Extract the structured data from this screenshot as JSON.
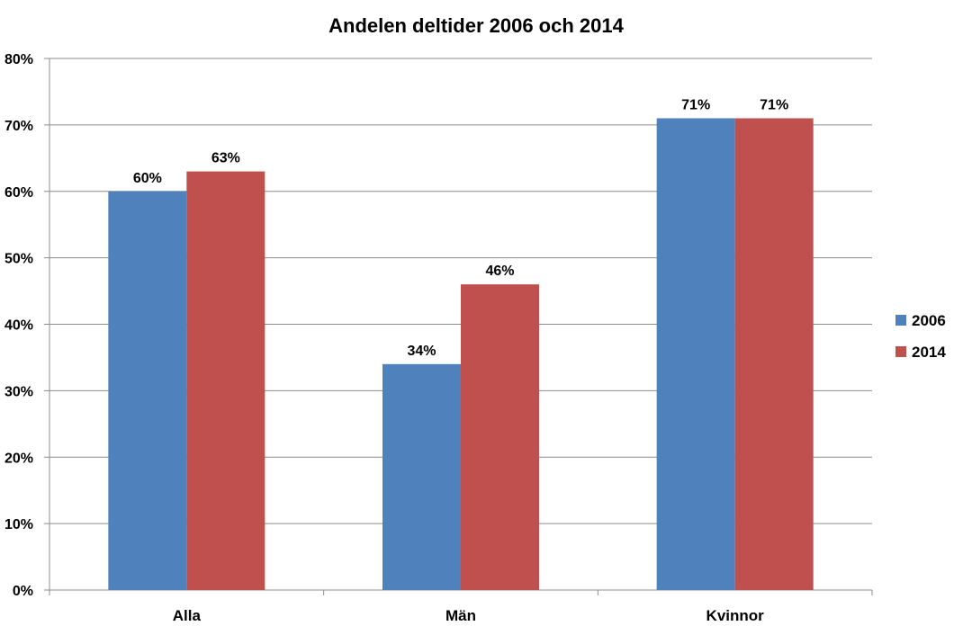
{
  "chart_data": {
    "type": "bar",
    "title": "Andelen deltider 2006 och 2014",
    "xlabel": "",
    "ylabel": "",
    "categories": [
      "Alla",
      "Män",
      "Kvinnor"
    ],
    "series": [
      {
        "name": "2006",
        "color": "#4F81BD",
        "values": [
          60,
          34,
          71
        ],
        "labels": [
          "60%",
          "34%",
          "71%"
        ]
      },
      {
        "name": "2014",
        "color": "#C0504D",
        "values": [
          63,
          46,
          71
        ],
        "labels": [
          "63%",
          "46%",
          "71%"
        ]
      }
    ],
    "ylim": [
      0,
      80
    ],
    "yticks": [
      0,
      10,
      20,
      30,
      40,
      50,
      60,
      70,
      80
    ],
    "ytick_labels": [
      "0%",
      "10%",
      "20%",
      "30%",
      "40%",
      "50%",
      "60%",
      "70%",
      "80%"
    ],
    "grid": true,
    "legend_position": "right"
  }
}
